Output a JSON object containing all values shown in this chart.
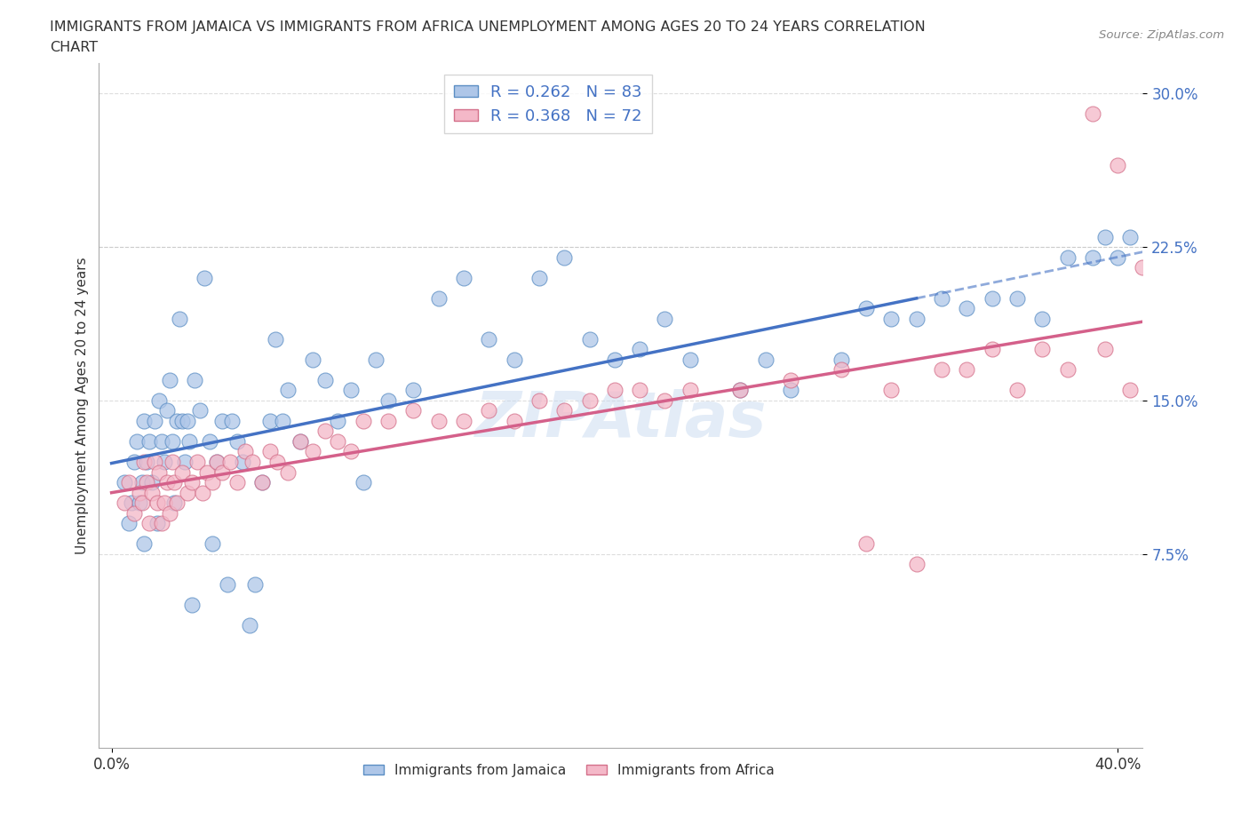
{
  "title_line1": "IMMIGRANTS FROM JAMAICA VS IMMIGRANTS FROM AFRICA UNEMPLOYMENT AMONG AGES 20 TO 24 YEARS CORRELATION",
  "title_line2": "CHART",
  "source": "Source: ZipAtlas.com",
  "ylabel": "Unemployment Among Ages 20 to 24 years",
  "xlim": [
    -0.005,
    0.41
  ],
  "ylim": [
    -0.02,
    0.315
  ],
  "xtick_pos": [
    0.0,
    0.4
  ],
  "xtick_labels": [
    "0.0%",
    "40.0%"
  ],
  "ytick_pos": [
    0.075,
    0.15,
    0.225,
    0.3
  ],
  "ytick_labels": [
    "7.5%",
    "15.0%",
    "22.5%",
    "30.0%"
  ],
  "jamaica_color": "#aec6e8",
  "jamaica_edge_color": "#5b8ec4",
  "africa_color": "#f4b8c8",
  "africa_edge_color": "#d4708a",
  "jamaica_line_color": "#4472c4",
  "africa_line_color": "#d4608a",
  "R_jamaica": 0.262,
  "N_jamaica": 83,
  "R_africa": 0.368,
  "N_africa": 72,
  "tick_color": "#4472c4",
  "watermark_color": "#c8daf0",
  "jamaica_x": [
    0.005,
    0.007,
    0.008,
    0.009,
    0.01,
    0.011,
    0.012,
    0.013,
    0.013,
    0.014,
    0.015,
    0.016,
    0.017,
    0.018,
    0.019,
    0.02,
    0.021,
    0.022,
    0.023,
    0.024,
    0.025,
    0.026,
    0.027,
    0.028,
    0.029,
    0.03,
    0.031,
    0.032,
    0.033,
    0.035,
    0.037,
    0.039,
    0.04,
    0.042,
    0.044,
    0.046,
    0.048,
    0.05,
    0.052,
    0.055,
    0.057,
    0.06,
    0.063,
    0.065,
    0.068,
    0.07,
    0.075,
    0.08,
    0.085,
    0.09,
    0.095,
    0.1,
    0.105,
    0.11,
    0.12,
    0.13,
    0.14,
    0.15,
    0.16,
    0.17,
    0.18,
    0.19,
    0.2,
    0.21,
    0.22,
    0.23,
    0.25,
    0.26,
    0.27,
    0.29,
    0.3,
    0.31,
    0.32,
    0.33,
    0.34,
    0.35,
    0.36,
    0.37,
    0.38,
    0.39,
    0.395,
    0.4,
    0.405
  ],
  "jamaica_y": [
    0.11,
    0.09,
    0.1,
    0.12,
    0.13,
    0.1,
    0.11,
    0.08,
    0.14,
    0.12,
    0.13,
    0.11,
    0.14,
    0.09,
    0.15,
    0.13,
    0.12,
    0.145,
    0.16,
    0.13,
    0.1,
    0.14,
    0.19,
    0.14,
    0.12,
    0.14,
    0.13,
    0.05,
    0.16,
    0.145,
    0.21,
    0.13,
    0.08,
    0.12,
    0.14,
    0.06,
    0.14,
    0.13,
    0.12,
    0.04,
    0.06,
    0.11,
    0.14,
    0.18,
    0.14,
    0.155,
    0.13,
    0.17,
    0.16,
    0.14,
    0.155,
    0.11,
    0.17,
    0.15,
    0.155,
    0.2,
    0.21,
    0.18,
    0.17,
    0.21,
    0.22,
    0.18,
    0.17,
    0.175,
    0.19,
    0.17,
    0.155,
    0.17,
    0.155,
    0.17,
    0.195,
    0.19,
    0.19,
    0.2,
    0.195,
    0.2,
    0.2,
    0.19,
    0.22,
    0.22,
    0.23,
    0.22,
    0.23
  ],
  "africa_x": [
    0.005,
    0.007,
    0.009,
    0.011,
    0.012,
    0.013,
    0.014,
    0.015,
    0.016,
    0.017,
    0.018,
    0.019,
    0.02,
    0.021,
    0.022,
    0.023,
    0.024,
    0.025,
    0.026,
    0.028,
    0.03,
    0.032,
    0.034,
    0.036,
    0.038,
    0.04,
    0.042,
    0.044,
    0.047,
    0.05,
    0.053,
    0.056,
    0.06,
    0.063,
    0.066,
    0.07,
    0.075,
    0.08,
    0.085,
    0.09,
    0.095,
    0.1,
    0.11,
    0.12,
    0.13,
    0.14,
    0.15,
    0.16,
    0.17,
    0.18,
    0.19,
    0.2,
    0.21,
    0.22,
    0.23,
    0.25,
    0.27,
    0.29,
    0.3,
    0.31,
    0.32,
    0.33,
    0.34,
    0.35,
    0.36,
    0.37,
    0.38,
    0.39,
    0.395,
    0.4,
    0.405,
    0.41
  ],
  "africa_y": [
    0.1,
    0.11,
    0.095,
    0.105,
    0.1,
    0.12,
    0.11,
    0.09,
    0.105,
    0.12,
    0.1,
    0.115,
    0.09,
    0.1,
    0.11,
    0.095,
    0.12,
    0.11,
    0.1,
    0.115,
    0.105,
    0.11,
    0.12,
    0.105,
    0.115,
    0.11,
    0.12,
    0.115,
    0.12,
    0.11,
    0.125,
    0.12,
    0.11,
    0.125,
    0.12,
    0.115,
    0.13,
    0.125,
    0.135,
    0.13,
    0.125,
    0.14,
    0.14,
    0.145,
    0.14,
    0.14,
    0.145,
    0.14,
    0.15,
    0.145,
    0.15,
    0.155,
    0.155,
    0.15,
    0.155,
    0.155,
    0.16,
    0.165,
    0.08,
    0.155,
    0.07,
    0.165,
    0.165,
    0.175,
    0.155,
    0.175,
    0.165,
    0.29,
    0.175,
    0.265,
    0.155,
    0.215
  ]
}
